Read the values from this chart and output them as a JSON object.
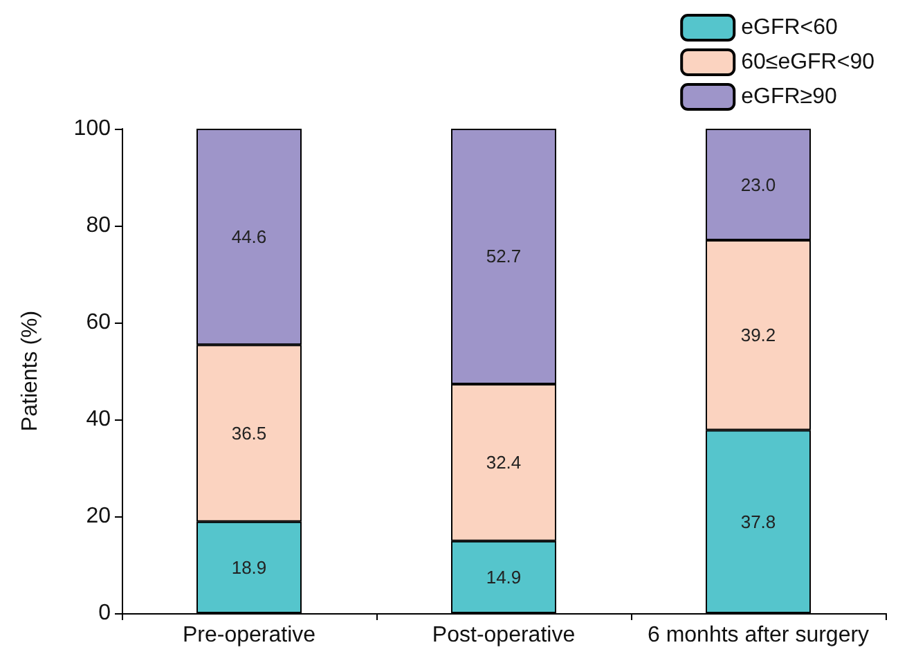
{
  "chart_data": {
    "type": "bar",
    "stacked": true,
    "ylabel": "Patients (%)",
    "categories": [
      "Pre-operative",
      "Post-operative",
      "6 monhts after surgery"
    ],
    "series": [
      {
        "name": "eGFR<60",
        "color": "#55c5cc",
        "values": [
          18.9,
          14.9,
          37.8
        ],
        "value_labels": [
          "18.9",
          "14.9",
          "37.8"
        ]
      },
      {
        "name": "60≤eGFR<90",
        "color": "#fbd3c0",
        "values": [
          36.5,
          32.4,
          39.2
        ],
        "value_labels": [
          "36.5",
          "32.4",
          "39.2"
        ]
      },
      {
        "name": "eGFR≥90",
        "color": "#9e95c9",
        "values": [
          44.6,
          52.7,
          23.0
        ],
        "value_labels": [
          "44.6",
          "52.7",
          "23.0"
        ]
      }
    ],
    "ylim": [
      0,
      100
    ],
    "yticks": [
      0,
      20,
      40,
      60,
      80,
      100
    ],
    "grid": false,
    "legend": "top right"
  }
}
